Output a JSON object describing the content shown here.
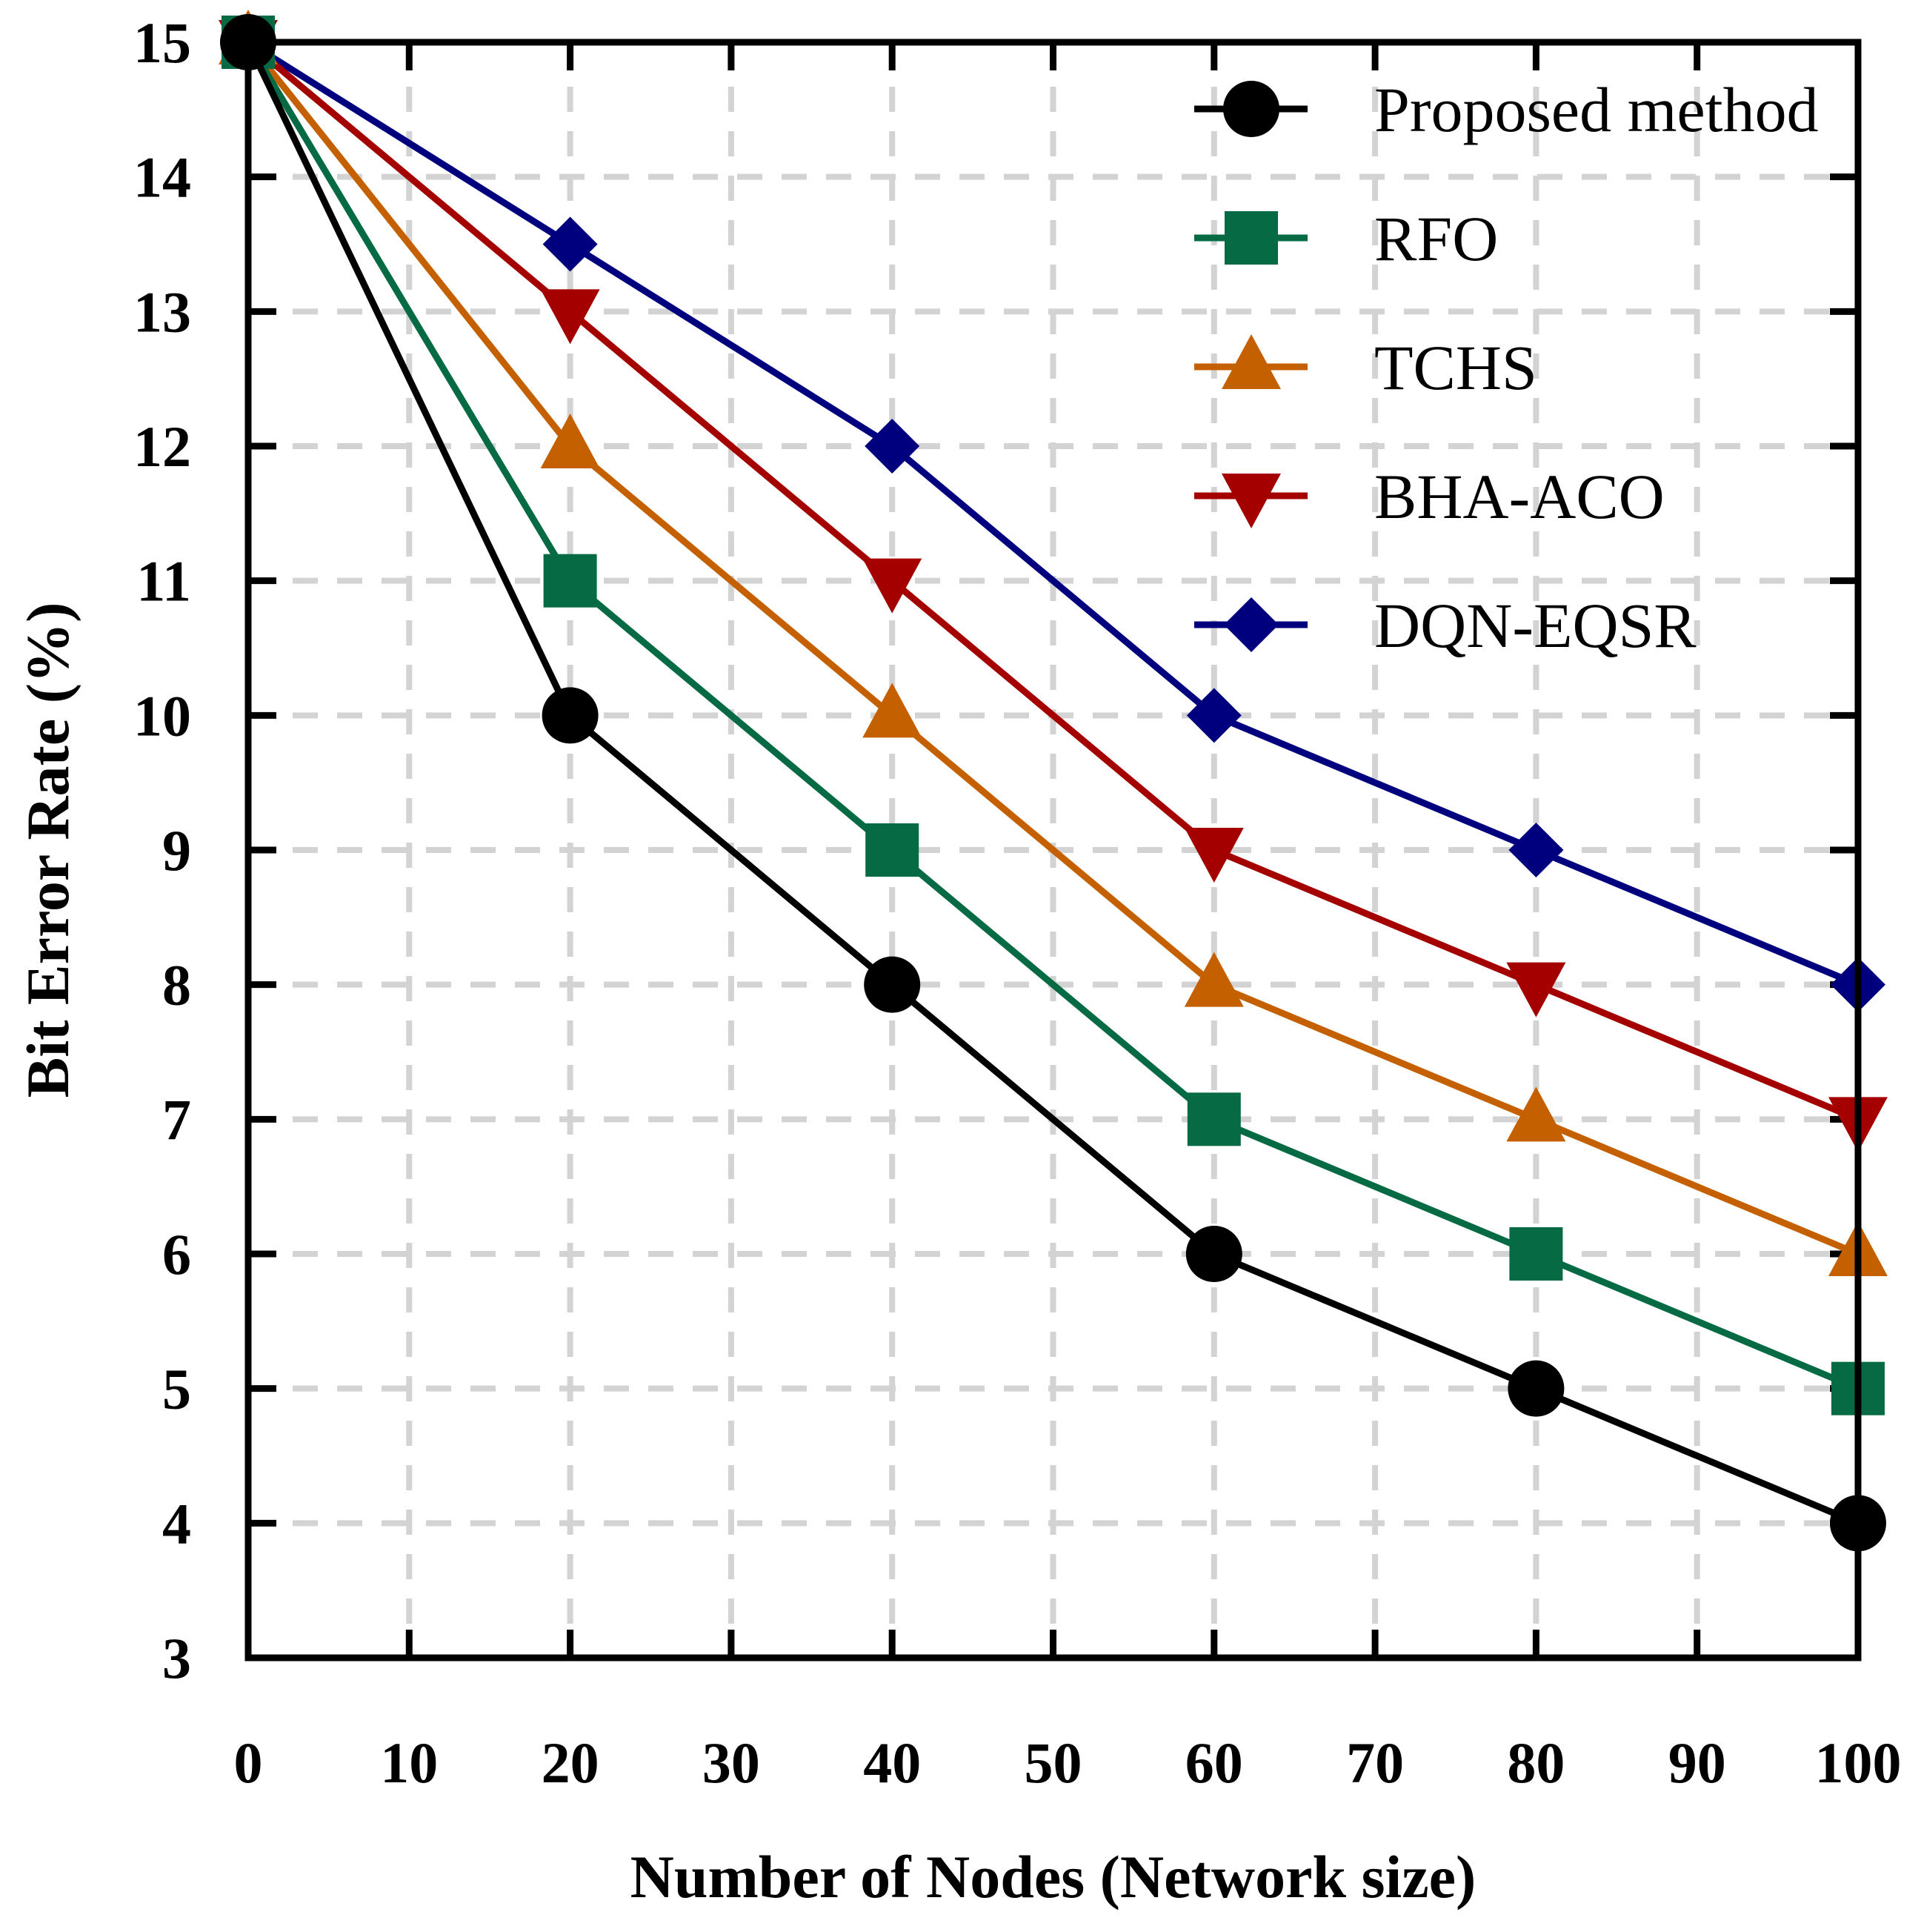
{
  "chart_data": {
    "type": "line",
    "title": "",
    "xlabel": "Number of Nodes (Network size)",
    "ylabel": "Bit Error Rate (%)",
    "xlim": [
      0,
      100
    ],
    "ylim": [
      3,
      15
    ],
    "xticks": [
      0,
      10,
      20,
      30,
      40,
      50,
      60,
      70,
      80,
      90,
      100
    ],
    "yticks": [
      3,
      4,
      5,
      6,
      7,
      8,
      9,
      10,
      11,
      12,
      13,
      14,
      15
    ],
    "grid": true,
    "legend_position": "top-right",
    "x": [
      0,
      20,
      40,
      60,
      80,
      100
    ],
    "series": [
      {
        "name": "Proposed method",
        "color": "#000000",
        "marker": "circle",
        "values": [
          15,
          10,
          8,
          6,
          5,
          4
        ]
      },
      {
        "name": "RFO",
        "color": "#066b44",
        "marker": "square",
        "values": [
          15,
          11,
          9,
          7,
          6,
          5
        ]
      },
      {
        "name": "TCHS",
        "color": "#c56000",
        "marker": "triangle-up",
        "values": [
          15,
          12,
          10,
          8,
          7,
          6
        ]
      },
      {
        "name": "BHA-ACO",
        "color": "#a40000",
        "marker": "triangle-down",
        "values": [
          15,
          13,
          11,
          9,
          8,
          7
        ]
      },
      {
        "name": "DQN-EQSR",
        "color": "#00007f",
        "marker": "diamond",
        "values": [
          15,
          13.5,
          12,
          10,
          9,
          8
        ]
      }
    ]
  }
}
